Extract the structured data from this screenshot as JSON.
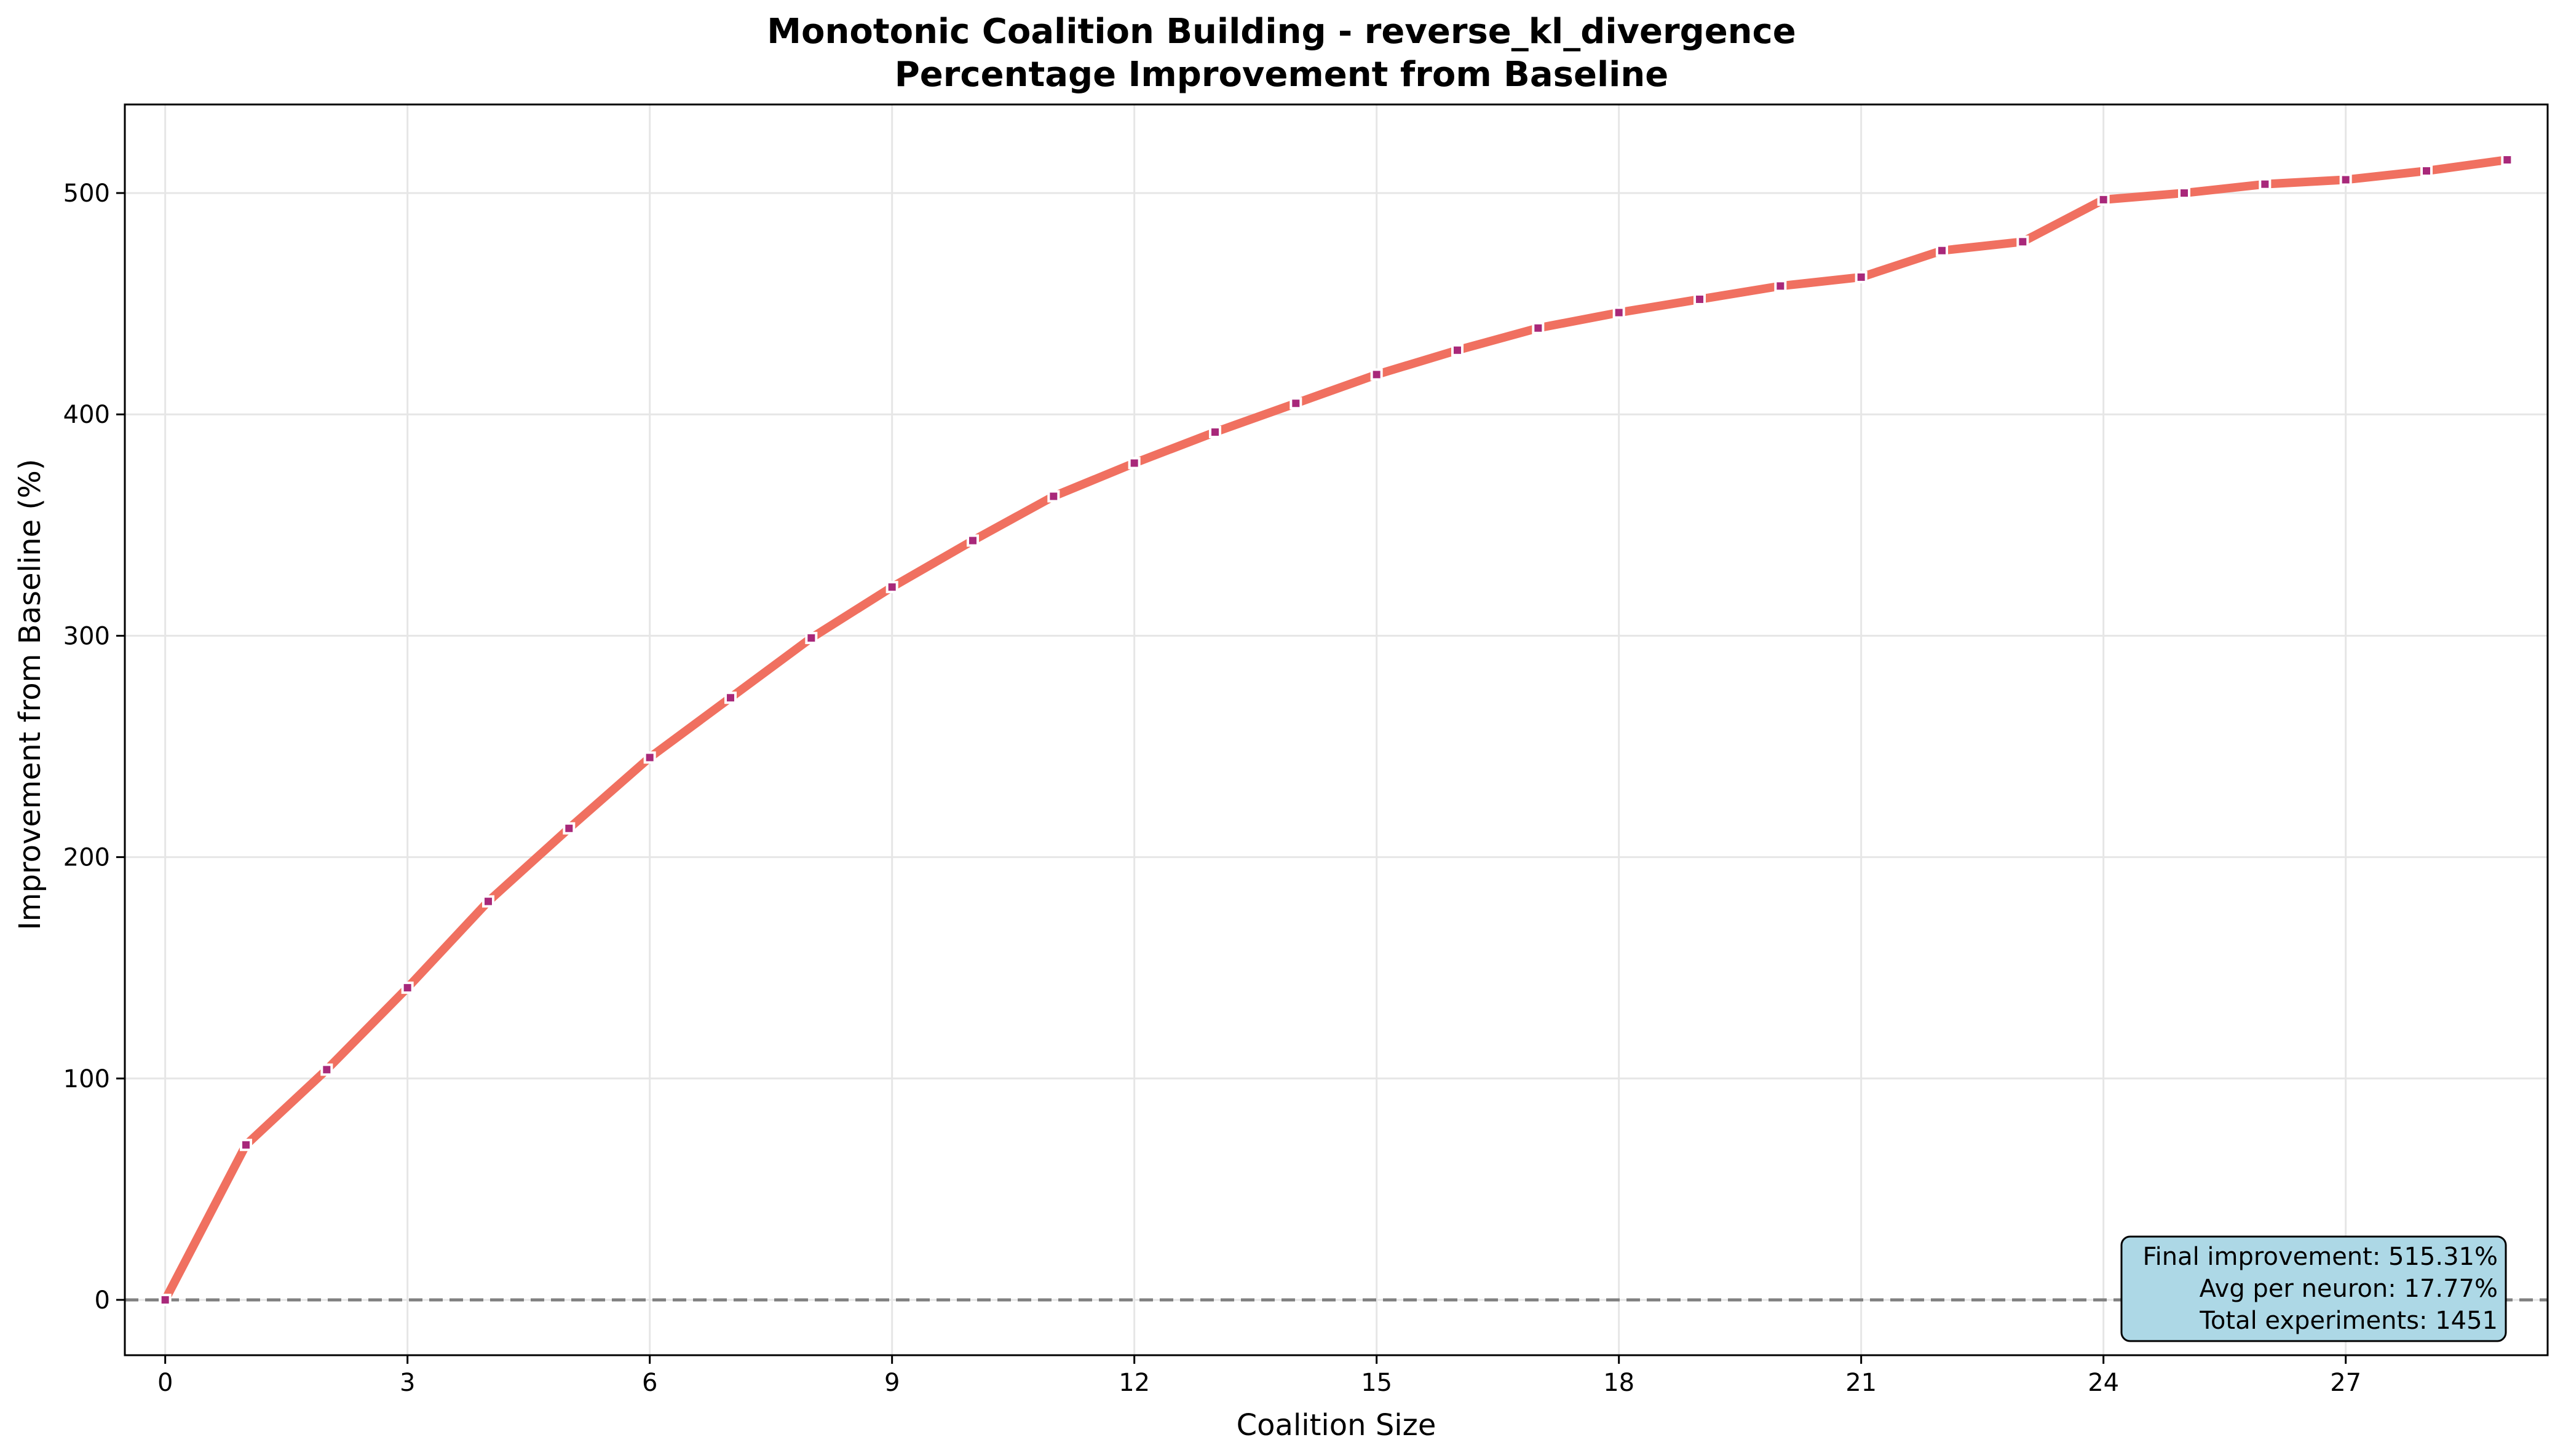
{
  "chart_data": {
    "type": "line",
    "title_line1": "Monotonic Coalition Building - reverse_kl_divergence",
    "title_line2": "Percentage Improvement from Baseline",
    "xlabel": "Coalition Size",
    "ylabel": "Improvement from Baseline (%)",
    "xlim": [
      -0.5,
      29.5
    ],
    "ylim": [
      -25,
      540
    ],
    "x_ticks": [
      0,
      3,
      6,
      9,
      12,
      15,
      18,
      21,
      24,
      27
    ],
    "y_ticks": [
      0,
      100,
      200,
      300,
      400,
      500
    ],
    "grid": true,
    "baseline": 0,
    "x": [
      0,
      1,
      2,
      3,
      4,
      5,
      6,
      7,
      8,
      9,
      10,
      11,
      12,
      13,
      14,
      15,
      16,
      17,
      18,
      19,
      20,
      21,
      22,
      23,
      24,
      25,
      26,
      27,
      28,
      29
    ],
    "y": [
      0,
      70,
      104,
      141,
      180,
      213,
      245,
      272,
      299,
      322,
      343,
      363,
      378,
      392,
      405,
      418,
      429,
      439,
      446,
      452,
      458,
      462,
      474,
      478,
      497,
      500,
      504,
      506,
      510,
      515
    ],
    "annotation_lines": [
      "Final improvement: 515.31%",
      "Avg per neuron: 17.77%",
      "Total experiments: 1451"
    ],
    "annotation_position": "bottom-right",
    "colors": {
      "line": "#f07060",
      "marker": "#a8287a",
      "baseline": "#808080",
      "annotation_bg": "#add8e6",
      "grid": "#e6e6e6"
    }
  }
}
